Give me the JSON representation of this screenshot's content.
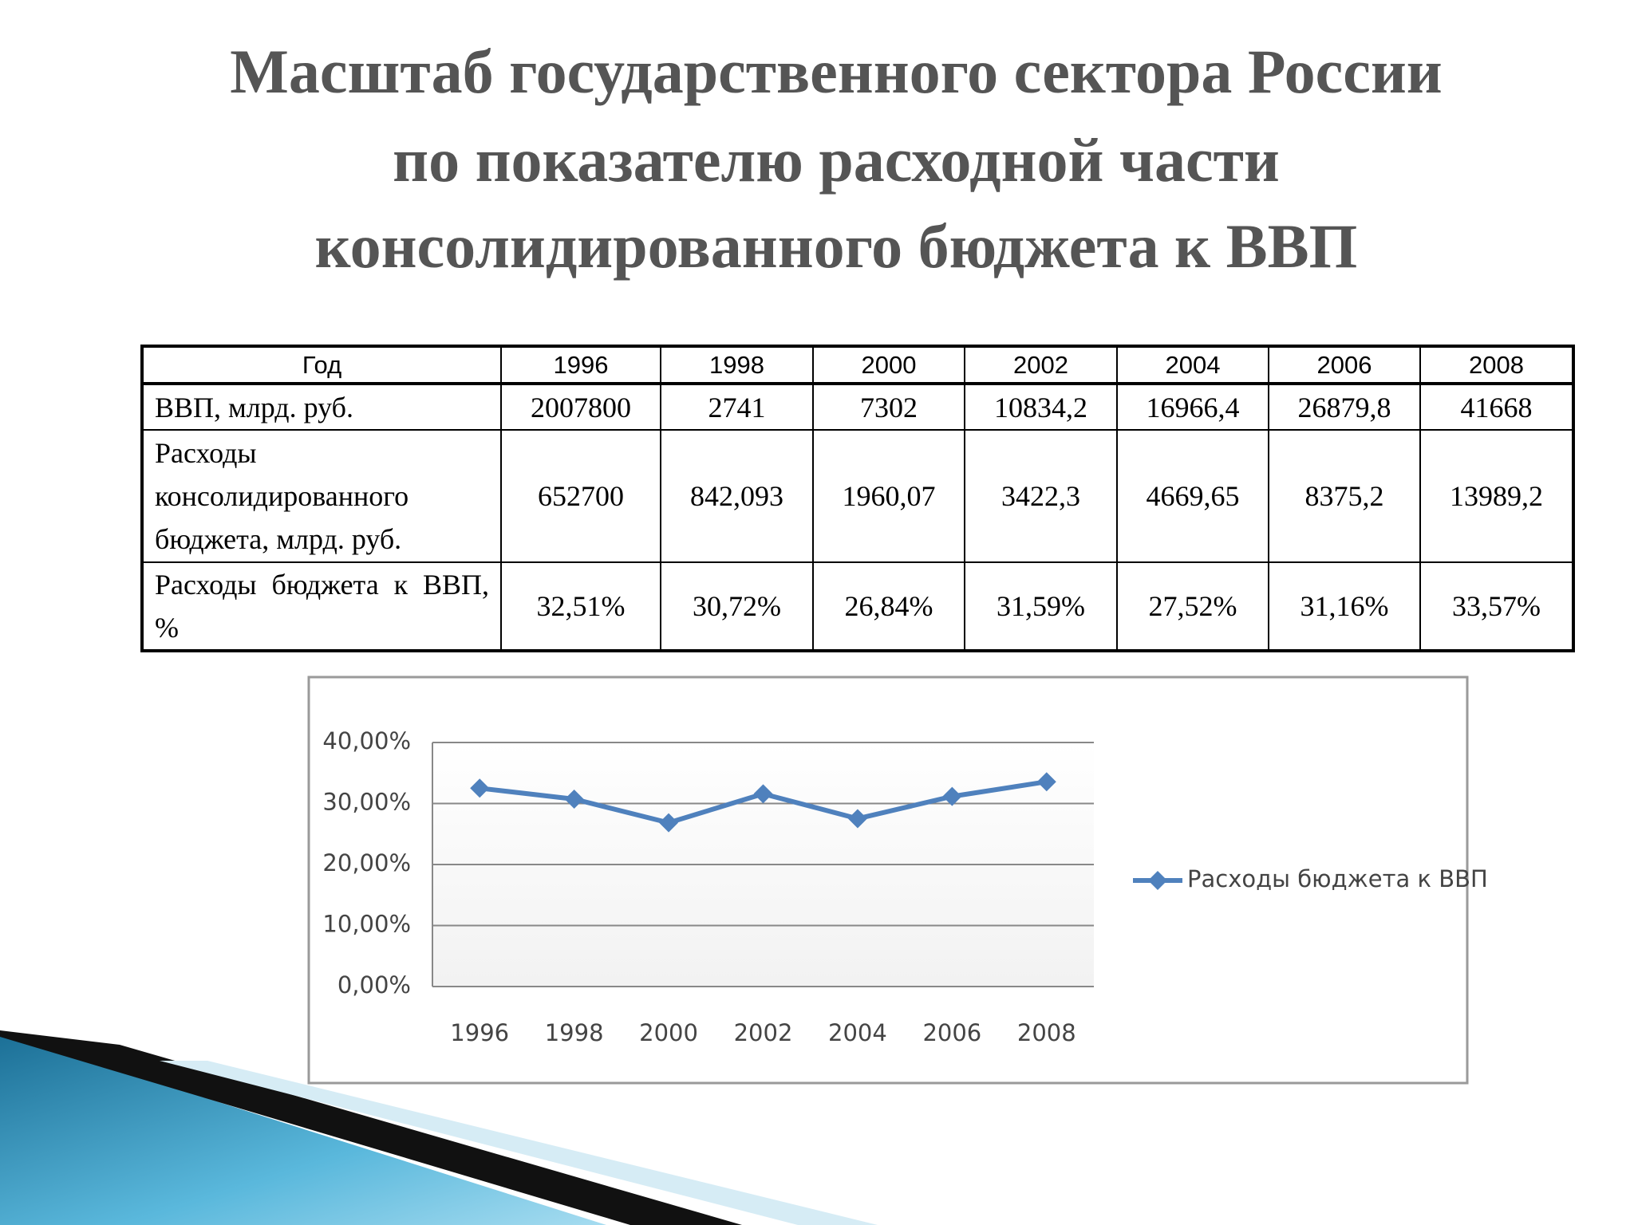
{
  "title": [
    "Масштаб государственного сектора России",
    "по показателю расходной части",
    "консолидированного бюджета к ВВП"
  ],
  "table": {
    "header": [
      "Год",
      "1996",
      "1998",
      "2000",
      "2002",
      "2004",
      "2006",
      "2008"
    ],
    "rows": [
      [
        "ВВП, млрд. руб.",
        "2007800",
        "2741",
        "7302",
        "10834,2",
        "16966,4",
        "26879,8",
        "41668"
      ],
      [
        "Расходы консолидированного бюджета, млрд. руб.",
        "652700",
        "842,093",
        "1960,07",
        "3422,3",
        "4669,65",
        "8375,2",
        "13989,2"
      ],
      [
        "Расходы бюджета к ВВП, %",
        "32,51%",
        "30,72%",
        "26,84%",
        "31,59%",
        "27,52%",
        "31,16%",
        "33,57%"
      ]
    ]
  },
  "chart_data": {
    "type": "line",
    "categories": [
      "1996",
      "1998",
      "2000",
      "2002",
      "2004",
      "2006",
      "2008"
    ],
    "series": [
      {
        "name": "Расходы бюджета к ВВП",
        "color": "#4f81bd",
        "values": [
          32.51,
          30.72,
          26.84,
          31.59,
          27.52,
          31.16,
          33.57
        ]
      }
    ],
    "ylim": [
      0,
      40
    ],
    "yticks": [
      {
        "value": 0,
        "label": "0,00%"
      },
      {
        "value": 10,
        "label": "10,00%"
      },
      {
        "value": 20,
        "label": "20,00%"
      },
      {
        "value": 30,
        "label": "30,00%"
      },
      {
        "value": 40,
        "label": "40,00%"
      }
    ],
    "grid": true,
    "legend": "right"
  }
}
